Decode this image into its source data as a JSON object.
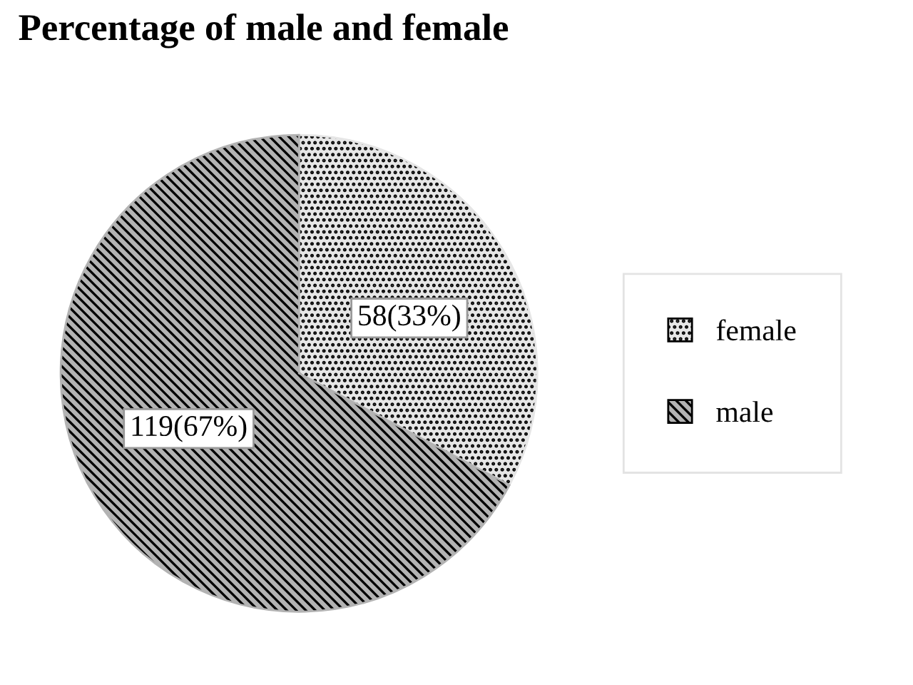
{
  "chart_data": {
    "type": "pie",
    "title": "Percentage of male and female",
    "categories": [
      "female",
      "male"
    ],
    "values": [
      58,
      119
    ],
    "value_labels": [
      "58(33%)",
      "119(67%)"
    ],
    "colors": [
      "#e6e6e6",
      "#b3b3b3"
    ],
    "legend": "right"
  }
}
